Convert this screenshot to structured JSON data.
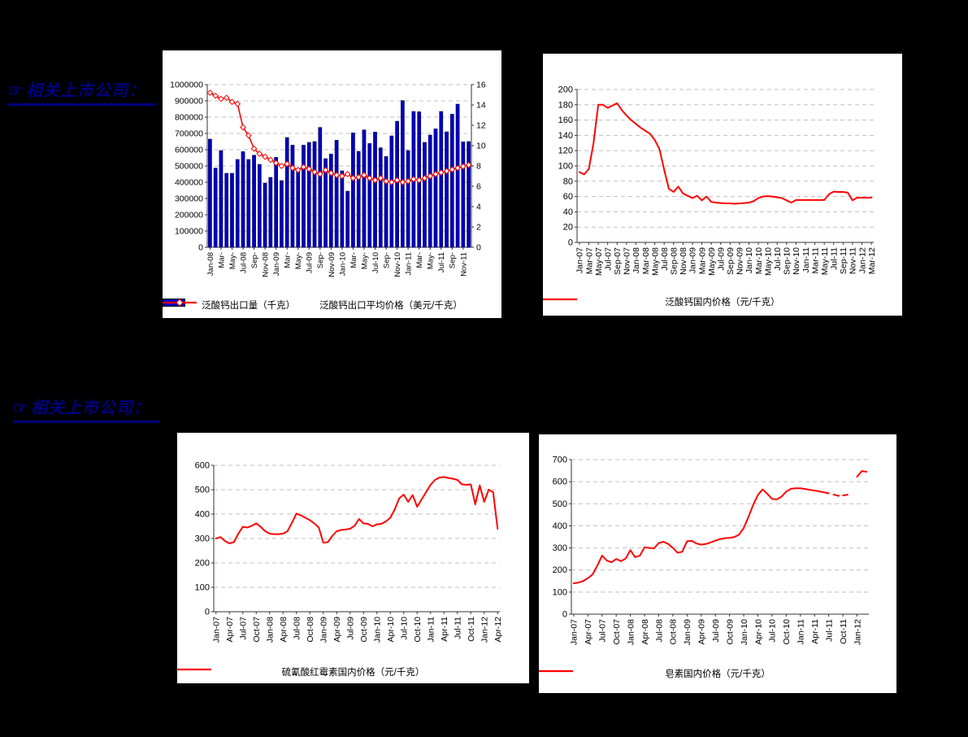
{
  "page": {
    "background_color": "#000000",
    "text_color": "#000080"
  },
  "sections": [
    {
      "icon": "pointing-hand-icon",
      "label": "相关上市公司："
    },
    {
      "icon": "pointing-hand-icon",
      "label": "相关上市公司："
    }
  ],
  "chart_data": [
    {
      "id": "calcium-pantothenate-export-chart",
      "type": "bar",
      "x_start": "Jan-08",
      "x_end": "Dec-11",
      "n_points": 48,
      "x_tick_every": 2,
      "x_tick_labels": [
        "Jan-08",
        "Mar-",
        "May-",
        "Jul-08",
        "Sep-",
        "Nov-08",
        "Jan-09",
        "Mar-",
        "May-",
        "Jul-09",
        "Sep-",
        "Nov-09",
        "Jan-10",
        "Mar-",
        "May-",
        "Jul-10",
        "Sep-",
        "Nov-10",
        "Jan-11",
        "Mar-",
        "May-",
        "Jul-11",
        "Sep-",
        "Nov-11"
      ],
      "y_left": {
        "min": 0,
        "max": 1000000,
        "step": 100000
      },
      "y_right": {
        "min": 0,
        "max": 16,
        "step": 2
      },
      "grid": "horizontal-dashed",
      "legend_position": "bottom",
      "series": [
        {
          "name": "泛酸钙出口量（千克）",
          "type": "bar",
          "axis": "left",
          "color": "#0000C0",
          "values": [
            665000,
            487000,
            595000,
            455000,
            455000,
            540000,
            588000,
            540000,
            566000,
            510000,
            395000,
            430000,
            553000,
            410000,
            675000,
            628000,
            485000,
            628000,
            645000,
            650000,
            737000,
            545000,
            573000,
            658000,
            470000,
            345000,
            703000,
            590000,
            722000,
            638000,
            708000,
            612000,
            558000,
            685000,
            775000,
            902000,
            595000,
            835000,
            833000,
            645000,
            690000,
            728000,
            835000,
            710000,
            818000,
            880000,
            648000,
            650000
          ]
        },
        {
          "name": "泛酸钙出口平均价格（美元/千克）",
          "type": "line",
          "axis": "right",
          "color": "#FF0000",
          "marker": "diamond",
          "width": 1.6,
          "values": [
            15.2,
            14.9,
            14.6,
            14.7,
            14.3,
            14.1,
            11.8,
            11.0,
            9.7,
            9.2,
            8.9,
            8.6,
            8.3,
            8.0,
            8.2,
            7.8,
            7.6,
            7.9,
            7.7,
            7.4,
            7.2,
            7.6,
            7.3,
            7.1,
            7.0,
            7.2,
            6.8,
            6.9,
            7.1,
            6.8,
            6.6,
            6.8,
            6.5,
            6.4,
            6.6,
            6.4,
            6.5,
            6.7,
            6.6,
            6.8,
            7.0,
            7.2,
            7.35,
            7.5,
            7.65,
            7.8,
            7.95,
            8.1
          ]
        }
      ]
    },
    {
      "id": "calcium-pantothenate-domestic-price-chart",
      "type": "line",
      "x_start": "Jan-07",
      "x_end": "Mar-12",
      "n_points": 63,
      "x_tick_every": 2,
      "x_tick_labels": [
        "Jan-07",
        "Mar-07",
        "May-07",
        "Jul-07",
        "Sep-07",
        "Nov-07",
        "Jan-08",
        "Mar-08",
        "May-08",
        "Jul-08",
        "Sep-08",
        "Nov-08",
        "Jan-09",
        "Mar-09",
        "May-09",
        "Jul-09",
        "Sep-09",
        "Nov-09",
        "Jan-10",
        "Mar-10",
        "May-10",
        "Jul-10",
        "Sep-10",
        "Nov-10",
        "Jan-11",
        "Mar-11",
        "May-11",
        "Jul-11",
        "Sep-11",
        "Nov-11",
        "Jan-12",
        "Mar-12"
      ],
      "y_left": {
        "min": 0,
        "max": 200,
        "step": 20
      },
      "grid": "horizontal-dashed",
      "legend_position": "bottom",
      "series": [
        {
          "name": "泛酸钙国内价格（元/千克）",
          "type": "line",
          "axis": "left",
          "color": "#FF0000",
          "width": 2,
          "values": [
            92,
            89,
            96,
            130,
            180,
            180,
            176,
            179,
            182,
            173,
            166,
            160,
            155,
            150,
            146,
            142,
            134,
            122,
            95,
            70,
            66,
            73,
            64,
            61,
            58,
            61,
            55,
            60,
            53,
            52,
            51.5,
            51,
            51,
            50.5,
            51,
            51.5,
            52,
            54,
            58,
            60,
            60.5,
            60,
            59,
            58,
            55,
            52,
            55.5,
            55.5,
            55.5,
            55.5,
            55.5,
            55.5,
            55.5,
            63,
            66.5,
            66,
            66,
            65,
            55,
            58.5,
            58.5,
            58.5,
            58.5
          ]
        }
      ]
    },
    {
      "id": "erythromycin-thiocyanate-domestic-price-chart",
      "type": "line",
      "x_start": "Jan-07",
      "x_end": "Apr-12",
      "n_points": 64,
      "x_tick_every": 3,
      "x_tick_labels": [
        "Jan-07",
        "Apr-07",
        "Jul-07",
        "Oct-07",
        "Jan-08",
        "Apr-08",
        "Jul-08",
        "Oct-08",
        "Jan-09",
        "Apr-09",
        "Jul-09",
        "Oct-09",
        "Jan-10",
        "Apr-10",
        "Jul-10",
        "Oct-10",
        "Jan-11",
        "Apr-11",
        "Jul-11",
        "Oct-11",
        "Jan-12",
        "Apr-12"
      ],
      "y_left": {
        "min": 0,
        "max": 600,
        "step": 100
      },
      "grid": "horizontal-dashed",
      "legend_position": "bottom",
      "series": [
        {
          "name": "硫氰酸红霉素国内价格（元/千克）",
          "type": "line",
          "axis": "left",
          "color": "#FF0000",
          "width": 2,
          "values": [
            300,
            306,
            290,
            280,
            285,
            320,
            348,
            345,
            352,
            362,
            348,
            330,
            320,
            318,
            318,
            320,
            330,
            365,
            402,
            395,
            385,
            375,
            362,
            345,
            283,
            285,
            310,
            330,
            335,
            337,
            340,
            352,
            380,
            362,
            360,
            350,
            358,
            360,
            370,
            385,
            420,
            465,
            480,
            450,
            478,
            430,
            460,
            490,
            520,
            540,
            550,
            552,
            548,
            545,
            540,
            522,
            520,
            522,
            440,
            518,
            450,
            500,
            490,
            340
          ]
        }
      ]
    },
    {
      "id": "saponin-domestic-price-chart",
      "type": "line",
      "x_start": "Jan-07",
      "x_end": "Mar-12",
      "n_points": 63,
      "x_tick_every": 3,
      "x_tick_labels": [
        "Jan-07",
        "Apr-07",
        "Jul-07",
        "Oct-07",
        "Jan-08",
        "Apr-08",
        "Jul-08",
        "Oct-08",
        "Jan-09",
        "Apr-09",
        "Jul-09",
        "Oct-09",
        "Jan-10",
        "Apr-10",
        "Jul-10",
        "Oct-10",
        "Jan-11",
        "Apr-11",
        "Jul-11",
        "Oct-11",
        "Jan-12"
      ],
      "y_left": {
        "min": 0,
        "max": 700,
        "step": 100
      },
      "grid": "horizontal-dashed",
      "legend_position": "bottom",
      "series": [
        {
          "name": "皂素国内价格（元/千克）",
          "type": "line",
          "axis": "left",
          "color": "#FF0000",
          "width": 2,
          "segments": [
            {
              "from": 0,
              "to": 54,
              "dashed": false
            },
            {
              "from": 55,
              "to": 58,
              "dashed": true
            },
            {
              "from": 60,
              "to": 62,
              "dashed": false
            }
          ],
          "values": [
            140,
            143,
            150,
            163,
            180,
            220,
            265,
            243,
            235,
            250,
            240,
            252,
            290,
            258,
            265,
            303,
            300,
            298,
            322,
            328,
            318,
            300,
            278,
            283,
            330,
            332,
            320,
            315,
            318,
            325,
            333,
            340,
            344,
            346,
            349,
            360,
            390,
            440,
            495,
            540,
            565,
            545,
            522,
            520,
            532,
            555,
            568,
            570,
            570,
            567,
            563,
            560,
            556,
            552,
            547,
            542,
            536,
            538,
            541,
            null,
            622,
            648,
            645
          ]
        }
      ]
    }
  ]
}
